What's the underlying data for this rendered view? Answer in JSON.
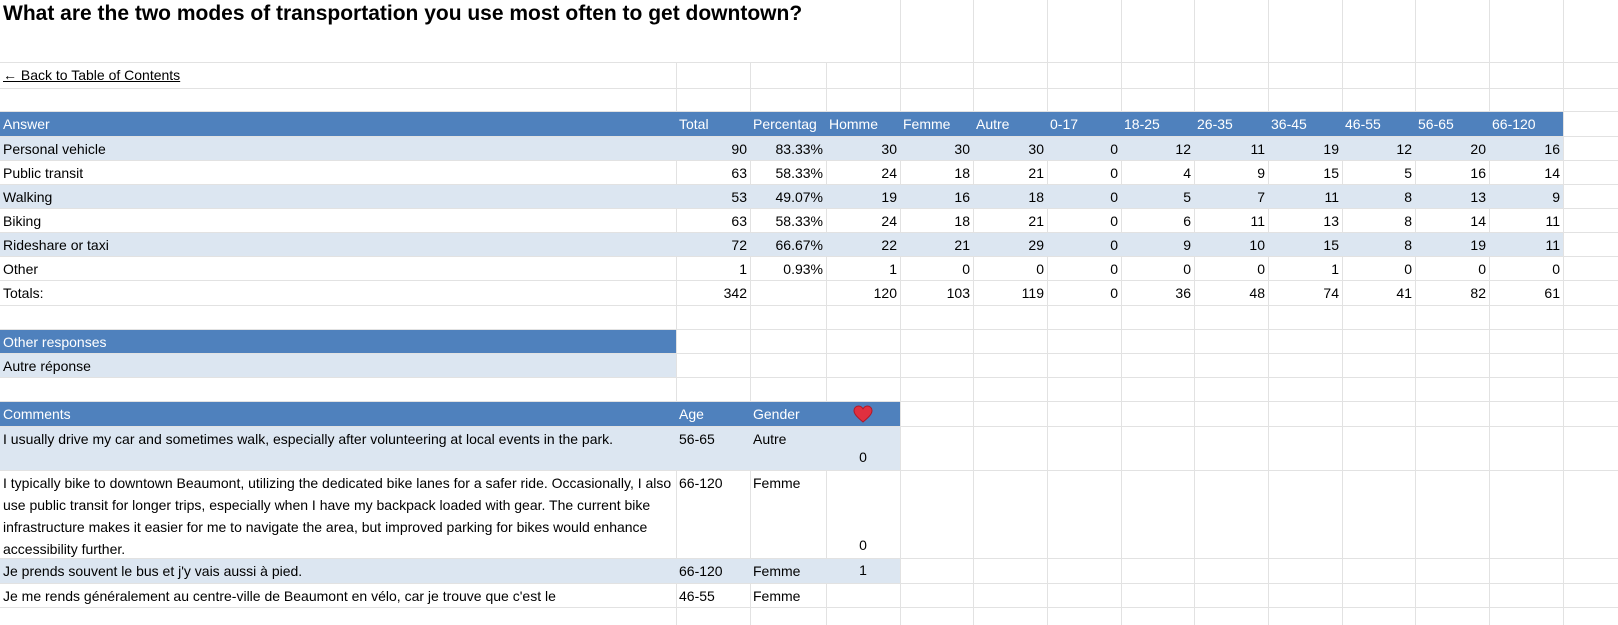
{
  "title": "What are the two modes of transportation you use most often to get downtown?",
  "back_link": "← Back to Table of Contents",
  "results": {
    "header": [
      "Answer",
      "Total",
      "Percentag",
      "Homme",
      "Femme",
      "Autre",
      "0-17",
      "18-25",
      "26-35",
      "36-45",
      "46-55",
      "56-65",
      "66-120"
    ],
    "rows": [
      [
        "Personal vehicle",
        90,
        "83.33%",
        30,
        30,
        30,
        0,
        12,
        11,
        19,
        12,
        20,
        16
      ],
      [
        "Public transit",
        63,
        "58.33%",
        24,
        18,
        21,
        0,
        4,
        9,
        15,
        5,
        16,
        14
      ],
      [
        "Walking",
        53,
        "49.07%",
        19,
        16,
        18,
        0,
        5,
        7,
        11,
        8,
        13,
        9
      ],
      [
        "Biking",
        63,
        "58.33%",
        24,
        18,
        21,
        0,
        6,
        11,
        13,
        8,
        14,
        11
      ],
      [
        "Rideshare or taxi",
        72,
        "66.67%",
        22,
        21,
        29,
        0,
        9,
        10,
        15,
        8,
        19,
        11
      ],
      [
        "Other",
        1,
        "0.93%",
        1,
        0,
        0,
        0,
        0,
        0,
        1,
        0,
        0,
        0
      ]
    ],
    "totals": {
      "label": "Totals:",
      "total": 342,
      "breakdown": [
        120,
        103,
        119,
        0,
        36,
        48,
        74,
        41,
        82,
        61
      ]
    }
  },
  "other_responses": {
    "header": "Other responses",
    "rows": [
      "Autre réponse"
    ]
  },
  "comments": {
    "header": [
      "Comments",
      "Age",
      "Gender"
    ],
    "rows": [
      {
        "text": "I usually drive my car and sometimes walk, especially after volunteering at local events in the park.",
        "age": "56-65",
        "gender": "Autre",
        "likes": 0
      },
      {
        "text": "I typically bike to downtown Beaumont, utilizing the dedicated bike lanes for a safer ride. Occasionally, I also use public transit for longer trips, especially when I have my backpack loaded with gear. The current bike infrastructure makes it easier for me to navigate the area, but improved parking for bikes would enhance accessibility further.",
        "age": "66-120",
        "gender": "Femme",
        "likes": 0
      },
      {
        "text": "Je prends souvent le bus et j'y vais aussi à pied.",
        "age": "66-120",
        "gender": "Femme",
        "likes": 1
      },
      {
        "text": "Je me rends généralement au centre-ville de Beaumont en vélo, car je trouve que c'est le",
        "age": "46-55",
        "gender": "Femme"
      }
    ]
  }
}
